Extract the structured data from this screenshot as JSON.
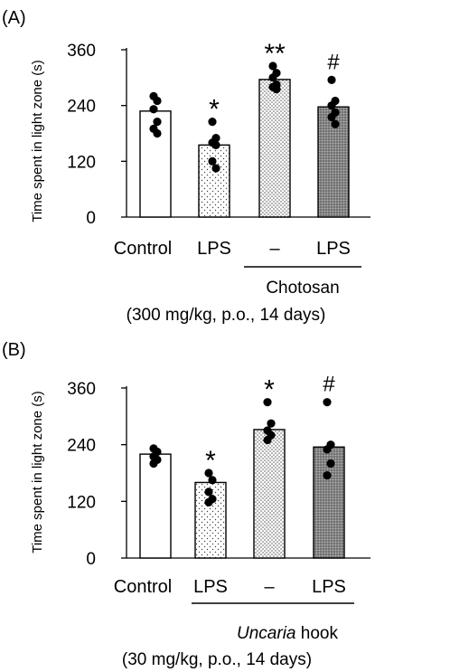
{
  "panels": [
    {
      "panel_label": "(A)",
      "tick_labels": [
        "0",
        "120",
        "240",
        "360"
      ],
      "bar_labels": [
        "Control",
        "LPS",
        "–",
        "LPS"
      ],
      "group_label": "Chotosan",
      "dose_label": "(300 mg/kg, p.o., 14 days)"
    },
    {
      "panel_label": "(B)",
      "tick_labels": [
        "0",
        "120",
        "240",
        "360"
      ],
      "bar_labels": [
        "Control",
        "LPS",
        "–",
        "LPS"
      ],
      "group_label_italic": "Uncaria",
      "group_label_rest": " hook",
      "dose_label": "(30 mg/kg, p.o., 14 days)"
    }
  ],
  "chart_data": [
    {
      "type": "bar",
      "panel": "(A)",
      "ylabel": "Time spent in light zone (s)",
      "ylim": [
        0,
        360
      ],
      "yticks": [
        0,
        120,
        240,
        360
      ],
      "categories": [
        "Control",
        "LPS",
        "–",
        "LPS"
      ],
      "values": [
        228,
        155,
        296,
        237
      ],
      "points": [
        [
          260,
          250,
          232,
          205,
          190,
          180
        ],
        [
          205,
          170,
          160,
          155,
          120,
          105
        ],
        [
          325,
          310,
          300,
          285,
          280,
          275
        ],
        [
          295,
          250,
          240,
          225,
          215,
          200
        ]
      ],
      "significance": [
        "",
        "*",
        "**",
        "#"
      ],
      "fill_patterns": [
        "white",
        "sparse-dots",
        "dense-dots",
        "dark-dots"
      ],
      "grid": false
    },
    {
      "type": "bar",
      "panel": "(B)",
      "ylabel": "Time spent in light zone (s)",
      "ylim": [
        0,
        360
      ],
      "yticks": [
        0,
        120,
        240,
        360
      ],
      "categories": [
        "Control",
        "LPS",
        "–",
        "LPS"
      ],
      "values": [
        220,
        160,
        272,
        235
      ],
      "points": [
        [
          232,
          225,
          215,
          208,
          200
        ],
        [
          180,
          165,
          140,
          125,
          118
        ],
        [
          330,
          285,
          270,
          260,
          250
        ],
        [
          330,
          240,
          230,
          200,
          175
        ]
      ],
      "significance": [
        "",
        "*",
        "*",
        "#"
      ],
      "fill_patterns": [
        "white",
        "sparse-dots",
        "dense-dots",
        "dark-dots"
      ],
      "grid": false
    }
  ]
}
